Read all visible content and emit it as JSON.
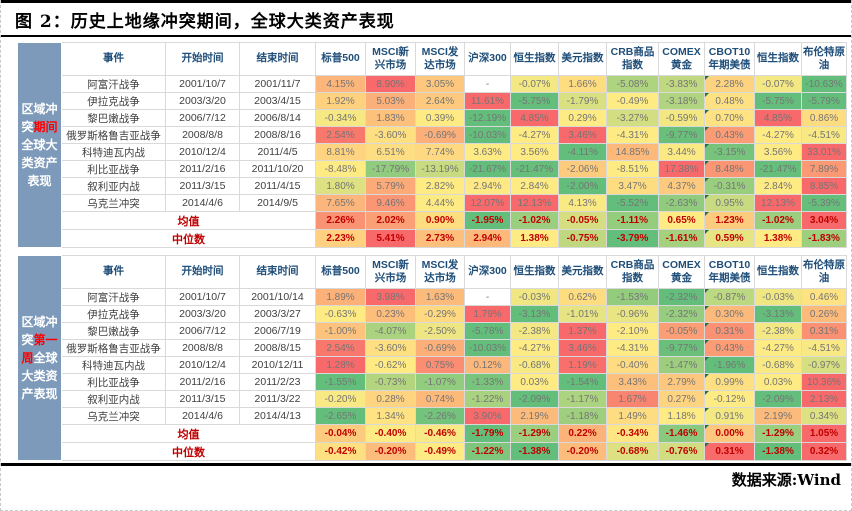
{
  "title": "图 2：历史上地缘冲突期间，全球大类资产表现",
  "source": "数据来源:Wind",
  "colors": {
    "scale_min_green": "#63BE7B",
    "scale_mid_yellow": "#FFEB84",
    "scale_max_red": "#F8696B",
    "sidebar_bg": "#7E9ABA",
    "header_text": "#1F4E79",
    "summary_text": "#C00000",
    "highlight_red": "#FF0000",
    "value_text": "#757575",
    "label_text": "#404040",
    "flag_green": "#217346"
  },
  "columns": [
    "事件",
    "开始时间",
    "结束时间",
    "标普500",
    "MSCI新兴市场",
    "MSCI发达市场",
    "沪深300",
    "恒生指数",
    "美元指数",
    "CRB商品指数",
    "COMEX黄金",
    "CBOT10年期美债",
    "恒生指数",
    "布伦特原油"
  ],
  "flag_column_index": 8,
  "tables": [
    {
      "sidebar": [
        {
          "text": "区域冲突",
          "highlight": false
        },
        {
          "text": "期间",
          "highlight": true
        },
        {
          "text": "全球大类资产表现",
          "highlight": false
        }
      ],
      "rows": [
        {
          "event": "阿富汗战争",
          "start": "2001/10/7",
          "end": "2001/11/7",
          "values": [
            "4.15%",
            "8.90%",
            "3.05%",
            "-",
            "-0.07%",
            "1.66%",
            "-5.08%",
            "-3.83%",
            "2.28%",
            "-0.07%",
            "-10.63%"
          ]
        },
        {
          "event": "伊拉克战争",
          "start": "2003/3/20",
          "end": "2003/4/15",
          "values": [
            "1.92%",
            "5.03%",
            "2.64%",
            "11.61%",
            "-5.75%",
            "-1.79%",
            "-0.49%",
            "-3.18%",
            "0.48%",
            "-5.75%",
            "-5.79%"
          ]
        },
        {
          "event": "黎巴嫩战争",
          "start": "2006/7/12",
          "end": "2006/8/14",
          "values": [
            "-0.34%",
            "1.83%",
            "0.39%",
            "-12.19%",
            "4.85%",
            "0.29%",
            "-3.27%",
            "-0.59%",
            "0.70%",
            "4.85%",
            "0.86%"
          ]
        },
        {
          "event": "俄罗斯格鲁吉亚战争",
          "start": "2008/8/8",
          "end": "2008/8/16",
          "values": [
            "2.54%",
            "-3.60%",
            "-0.69%",
            "-10.03%",
            "-4.27%",
            "3.46%",
            "-4.31%",
            "-9.77%",
            "0.43%",
            "-4.27%",
            "-4.51%"
          ]
        },
        {
          "event": "科特迪瓦内战",
          "start": "2010/12/4",
          "end": "2011/4/5",
          "values": [
            "8.81%",
            "6.51%",
            "7.74%",
            "3.63%",
            "3.56%",
            "-4.11%",
            "14.85%",
            "3.44%",
            "-3.15%",
            "3.56%",
            "33.01%"
          ]
        },
        {
          "event": "利比亚战争",
          "start": "2011/2/16",
          "end": "2011/10/20",
          "values": [
            "-8.48%",
            "-17.79%",
            "-13.19%",
            "-21.67%",
            "-21.47%",
            "-2.06%",
            "-8.51%",
            "17.38%",
            "8.48%",
            "-21.47%",
            "7.89%"
          ]
        },
        {
          "event": "叙利亚内战",
          "start": "2011/3/15",
          "end": "2011/4/15",
          "values": [
            "1.80%",
            "5.79%",
            "2.82%",
            "2.94%",
            "2.84%",
            "-2.00%",
            "3.47%",
            "4.37%",
            "-0.31%",
            "2.84%",
            "8.85%"
          ]
        },
        {
          "event": "乌克兰冲突",
          "start": "2014/4/6",
          "end": "2014/9/5",
          "values": [
            "7.65%",
            "9.46%",
            "4.44%",
            "12.07%",
            "12.13%",
            "4.13%",
            "-5.52%",
            "-2.63%",
            "0.95%",
            "12.13%",
            "-5.39%"
          ]
        }
      ],
      "summary": [
        {
          "label": "均值",
          "values": [
            "2.26%",
            "2.02%",
            "0.90%",
            "-1.95%",
            "-1.02%",
            "-0.05%",
            "-1.11%",
            "0.65%",
            "1.23%",
            "-1.02%",
            "3.04%"
          ]
        },
        {
          "label": "中位数",
          "values": [
            "2.23%",
            "5.41%",
            "2.73%",
            "2.94%",
            "1.38%",
            "-0.75%",
            "-3.79%",
            "-1.61%",
            "0.59%",
            "1.38%",
            "-1.83%"
          ]
        }
      ]
    },
    {
      "sidebar": [
        {
          "text": "区域冲突",
          "highlight": false
        },
        {
          "text": "第一周",
          "highlight": true
        },
        {
          "text": "全球大类资产表现",
          "highlight": false
        }
      ],
      "rows": [
        {
          "event": "阿富汗战争",
          "start": "2001/10/7",
          "end": "2001/10/14",
          "values": [
            "1.89%",
            "3.98%",
            "1.63%",
            "-",
            "-0.03%",
            "0.62%",
            "-1.53%",
            "-2.32%",
            "-0.87%",
            "-0.03%",
            "0.46%"
          ]
        },
        {
          "event": "伊拉克战争",
          "start": "2003/3/20",
          "end": "2003/3/27",
          "values": [
            "-0.63%",
            "0.23%",
            "-0.29%",
            "1.79%",
            "-3.13%",
            "-1.01%",
            "-0.96%",
            "-2.32%",
            "0.30%",
            "-3.13%",
            "0.26%"
          ]
        },
        {
          "event": "黎巴嫩战争",
          "start": "2006/7/12",
          "end": "2006/7/19",
          "values": [
            "-1.00%",
            "-4.07%",
            "-2.50%",
            "-5.78%",
            "-2.38%",
            "1.37%",
            "-2.10%",
            "-0.05%",
            "0.31%",
            "-2.38%",
            "0.31%"
          ]
        },
        {
          "event": "俄罗斯格鲁吉亚战争",
          "start": "2008/8/8",
          "end": "2008/8/15",
          "values": [
            "2.54%",
            "-3.60%",
            "-0.69%",
            "-10.03%",
            "-4.27%",
            "3.46%",
            "-4.31%",
            "-9.77%",
            "0.43%",
            "-4.27%",
            "-4.51%"
          ]
        },
        {
          "event": "科特迪瓦内战",
          "start": "2010/12/4",
          "end": "2010/12/11",
          "values": [
            "1.28%",
            "-0.62%",
            "0.75%",
            "0.12%",
            "-0.68%",
            "1.19%",
            "-0.40%",
            "-1.47%",
            "-1.96%",
            "-0.68%",
            "-0.97%"
          ]
        },
        {
          "event": "利比亚战争",
          "start": "2011/2/16",
          "end": "2011/2/23",
          "values": [
            "-1.55%",
            "-0.73%",
            "-1.07%",
            "-1.33%",
            "0.03%",
            "-1.54%",
            "3.43%",
            "2.79%",
            "0.99%",
            "0.03%",
            "10.36%"
          ]
        },
        {
          "event": "叙利亚内战",
          "start": "2011/3/15",
          "end": "2011/3/22",
          "values": [
            "-0.20%",
            "0.28%",
            "0.74%",
            "-1.22%",
            "-2.09%",
            "-1.17%",
            "1.67%",
            "0.27%",
            "-0.12%",
            "-2.09%",
            "2.13%"
          ]
        },
        {
          "event": "乌克兰冲突",
          "start": "2014/4/6",
          "end": "2014/4/13",
          "values": [
            "-2.65%",
            "1.34%",
            "-2.26%",
            "3.90%",
            "2.19%",
            "-1.18%",
            "1.49%",
            "1.18%",
            "0.91%",
            "2.19%",
            "0.34%"
          ]
        }
      ],
      "summary": [
        {
          "label": "均值",
          "values": [
            "-0.04%",
            "-0.40%",
            "-0.46%",
            "-1.79%",
            "-1.29%",
            "0.22%",
            "-0.34%",
            "-1.46%",
            "0.00%",
            "-1.29%",
            "1.05%"
          ]
        },
        {
          "label": "中位数",
          "values": [
            "-0.42%",
            "-0.20%",
            "-0.49%",
            "-1.22%",
            "-1.38%",
            "-0.20%",
            "-0.68%",
            "-0.76%",
            "0.31%",
            "-1.38%",
            "0.32%"
          ]
        }
      ]
    }
  ]
}
